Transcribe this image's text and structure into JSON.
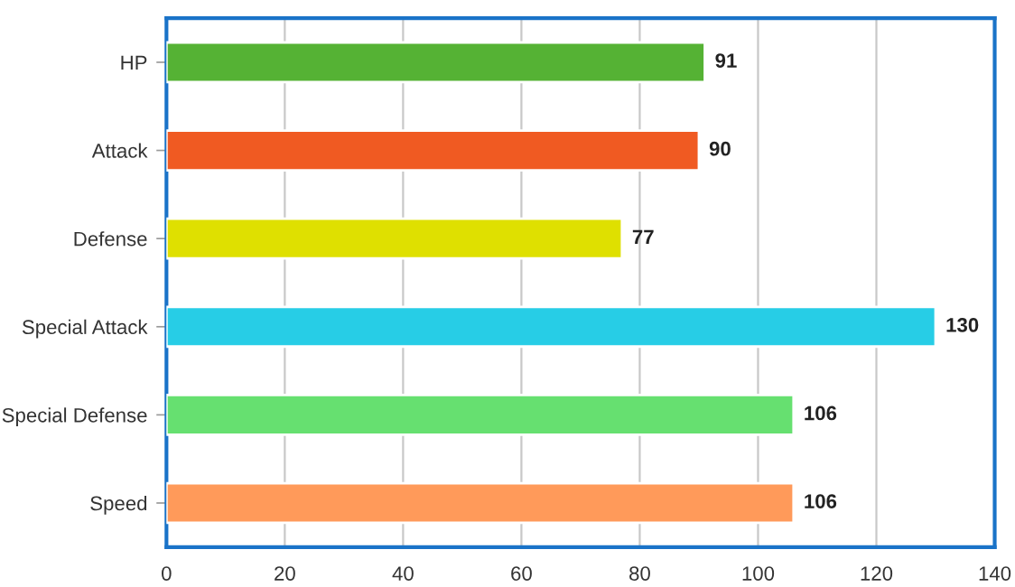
{
  "chart_data": {
    "type": "bar",
    "orientation": "horizontal",
    "categories": [
      "HP",
      "Attack",
      "Defense",
      "Special Attack",
      "Special Defense",
      "Speed"
    ],
    "values": [
      91,
      90,
      77,
      130,
      106,
      106
    ],
    "colors": [
      "#55b234",
      "#f05a22",
      "#dfe000",
      "#27cde6",
      "#66e070",
      "#ff9a5a"
    ],
    "xlim": [
      0,
      140
    ],
    "xticks": [
      0,
      20,
      40,
      60,
      80,
      100,
      120,
      140
    ],
    "grid": "x",
    "data_labels": true,
    "legend": false
  }
}
